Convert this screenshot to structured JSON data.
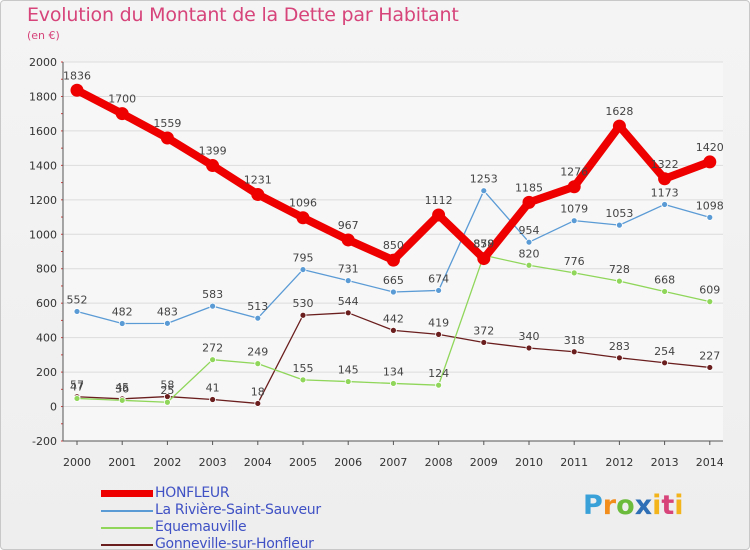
{
  "chart_data": {
    "type": "line",
    "title": "Evolution du Montant de la Dette par Habitant",
    "subtitle": "(en €)",
    "x": [
      "2000",
      "2001",
      "2002",
      "2003",
      "2004",
      "2005",
      "2006",
      "2007",
      "2008",
      "2009",
      "2010",
      "2011",
      "2012",
      "2013",
      "2014"
    ],
    "y_ticks": [
      "-200",
      "0",
      "200",
      "400",
      "600",
      "800",
      "1000",
      "1200",
      "1400",
      "1600",
      "1800",
      "2000"
    ],
    "ylim": [
      -200,
      2000
    ],
    "grid": true,
    "legend_position": "bottom-left",
    "series": [
      {
        "name": "HONFLEUR",
        "color": "#ee0000",
        "values": [
          1836,
          1700,
          1559,
          1399,
          1231,
          1096,
          967,
          850,
          1112,
          859,
          1185,
          1276,
          1628,
          1322,
          1420
        ],
        "labels": [
          "1836",
          "1700",
          "1559",
          "1399",
          "1231",
          "1096",
          "967",
          "850",
          "1112",
          "859",
          "1185",
          "1276",
          "1628",
          "1322",
          "1420"
        ]
      },
      {
        "name": "La Rivière-Saint-Sauveur",
        "color": "#5b9bd5",
        "values": [
          552,
          482,
          483,
          583,
          513,
          795,
          731,
          665,
          674,
          1253,
          954,
          1079,
          1053,
          1173,
          1098
        ],
        "labels": [
          "552",
          "482",
          "483",
          "583",
          "513",
          "795",
          "731",
          "665",
          "674",
          "1253",
          "954",
          "1079",
          "1053",
          "1173",
          "1098"
        ]
      },
      {
        "name": "Equemauville",
        "color": "#8fd65a",
        "values": [
          47,
          36,
          25,
          272,
          249,
          155,
          145,
          134,
          124,
          878,
          820,
          776,
          728,
          668,
          609
        ],
        "labels": [
          "47",
          "36",
          "25",
          "272",
          "249",
          "155",
          "145",
          "134",
          "124",
          "878",
          "820",
          "776",
          "728",
          "668",
          "609"
        ]
      },
      {
        "name": "Gonneville-sur-Honfleur",
        "color": "#6b1e1e",
        "values": [
          57,
          45,
          58,
          41,
          18,
          530,
          544,
          442,
          419,
          372,
          340,
          318,
          283,
          254,
          227
        ],
        "labels": [
          "57",
          "45",
          "58",
          "41",
          "18",
          "530",
          "544",
          "442",
          "419",
          "372",
          "340",
          "318",
          "283",
          "254",
          "227"
        ]
      }
    ]
  },
  "logo": {
    "text": "Proxiti"
  }
}
